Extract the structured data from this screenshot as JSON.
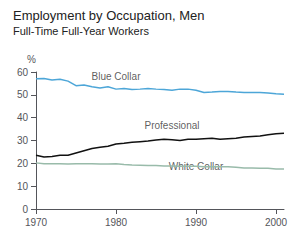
{
  "chart_data": {
    "type": "line",
    "title": "Employment by Occupation, Men",
    "subtitle": "Full-Time Full-Year Workers",
    "ylabel": "%",
    "x": [
      1970,
      1971,
      1972,
      1973,
      1974,
      1975,
      1976,
      1977,
      1978,
      1979,
      1980,
      1981,
      1982,
      1983,
      1984,
      1985,
      1986,
      1987,
      1988,
      1989,
      1990,
      1991,
      1992,
      1993,
      1994,
      1995,
      1996,
      1997,
      1998,
      1999,
      2000,
      2001
    ],
    "series": [
      {
        "color": "#4da6d8",
        "values": [
          57.0,
          57.2,
          56.5,
          56.8,
          56.0,
          54.0,
          54.3,
          53.5,
          53.0,
          53.5,
          52.5,
          52.8,
          52.3,
          52.5,
          52.8,
          52.5,
          52.3,
          52.0,
          52.5,
          52.5,
          52.0,
          51.0,
          51.2,
          51.5,
          51.5,
          51.2,
          51.0,
          51.0,
          51.0,
          50.8,
          50.5,
          50.3
        ]
      },
      {
        "color": "#111111",
        "values": [
          23.5,
          22.8,
          23.0,
          23.5,
          23.5,
          24.5,
          25.5,
          26.5,
          27.0,
          27.5,
          28.5,
          28.8,
          29.2,
          29.5,
          29.8,
          30.2,
          30.5,
          30.3,
          30.0,
          30.5,
          30.5,
          30.8,
          31.0,
          30.5,
          30.8,
          31.0,
          31.5,
          31.8,
          32.0,
          32.5,
          33.0,
          33.2
        ]
      },
      {
        "color": "#99bbaa",
        "values": [
          20.2,
          19.8,
          19.8,
          19.8,
          19.7,
          19.8,
          19.8,
          19.8,
          19.7,
          19.7,
          19.8,
          19.5,
          19.3,
          19.2,
          19.0,
          19.0,
          18.8,
          18.8,
          18.7,
          18.7,
          18.7,
          18.5,
          18.5,
          18.5,
          18.5,
          18.3,
          18.0,
          18.0,
          17.8,
          17.8,
          17.5,
          17.5
        ]
      }
    ],
    "annotations": [
      {
        "text": "Blue Collar",
        "x": 1980,
        "y": 55.0
      },
      {
        "text": "Professional",
        "x": 1987,
        "y": 33.5
      },
      {
        "text": "White Collar",
        "x": 1990,
        "y": 15.5
      }
    ],
    "xlim": [
      1970,
      2001
    ],
    "xticks": [
      1970,
      1980,
      1990,
      2000
    ],
    "ylim": [
      0,
      60
    ],
    "yticks": [
      0,
      10,
      20,
      30,
      40,
      50,
      60
    ],
    "grid": false
  }
}
